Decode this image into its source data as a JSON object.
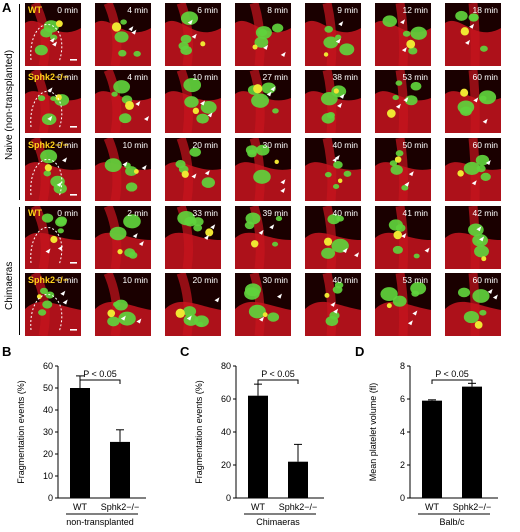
{
  "panel_labels": {
    "a": "A",
    "b": "B",
    "c": "C",
    "d": "D"
  },
  "group_labels": {
    "naive": "Naive (non-transplanted)",
    "chimaeras": "Chimaeras"
  },
  "microscopy": {
    "rows": [
      {
        "genotype": "WT",
        "times": [
          "0 min",
          "4 min",
          "6 min",
          "8 min",
          "9 min",
          "12 min",
          "18 min"
        ]
      },
      {
        "genotype": "Sphk2−/−",
        "times": [
          "0 min",
          "4 min",
          "10 min",
          "27 min",
          "38 min",
          "53 min",
          "60 min"
        ]
      },
      {
        "genotype": "Sphk2−/−",
        "times": [
          "0 min",
          "10 min",
          "20 min",
          "30 min",
          "40 min",
          "50 min",
          "60 min"
        ]
      },
      {
        "genotype": "WT",
        "times": [
          "0 min",
          "2 min",
          "33 min",
          "39 min",
          "40 min",
          "41 min",
          "42 min"
        ]
      },
      {
        "genotype": "Sphk2−/−",
        "times": [
          "0 min",
          "10 min",
          "20 min",
          "30 min",
          "40 min",
          "53 min",
          "60 min"
        ]
      }
    ],
    "colors": {
      "vessel": "#c8141e",
      "platelet": "#5fd23c",
      "overlap": "#f0e632",
      "background": "#1a0000"
    }
  },
  "chart_data": [
    {
      "type": "bar",
      "categories": [
        "WT",
        "Sphk2−/−"
      ],
      "values": [
        50,
        25.5
      ],
      "errors": [
        5.5,
        5.5
      ],
      "ylabel": "Fragmentation events (%)",
      "ylim": [
        0,
        60
      ],
      "yticks": [
        "0",
        "10",
        "20",
        "30",
        "40",
        "50",
        "60"
      ],
      "group_label": "non-transplanted",
      "significance": "P < 0.05"
    },
    {
      "type": "bar",
      "categories": [
        "WT",
        "Sphk2−/−"
      ],
      "values": [
        62,
        22
      ],
      "errors": [
        7,
        10.5
      ],
      "ylabel": "Fragmentation events (%)",
      "ylim": [
        0,
        80
      ],
      "yticks": [
        "0",
        "20",
        "40",
        "60",
        "80"
      ],
      "group_label": "Chimaeras",
      "significance": "P < 0.05"
    },
    {
      "type": "bar",
      "categories": [
        "WT",
        "Sphk2−/−"
      ],
      "values": [
        5.9,
        6.75
      ],
      "errors": [
        0.05,
        0.2
      ],
      "ylabel": "Mean platelet volume (fl)",
      "ylim": [
        0,
        8
      ],
      "yticks": [
        "0",
        "2",
        "4",
        "6",
        "8"
      ],
      "group_label": "Balb/c",
      "significance": "P < 0.05"
    }
  ]
}
